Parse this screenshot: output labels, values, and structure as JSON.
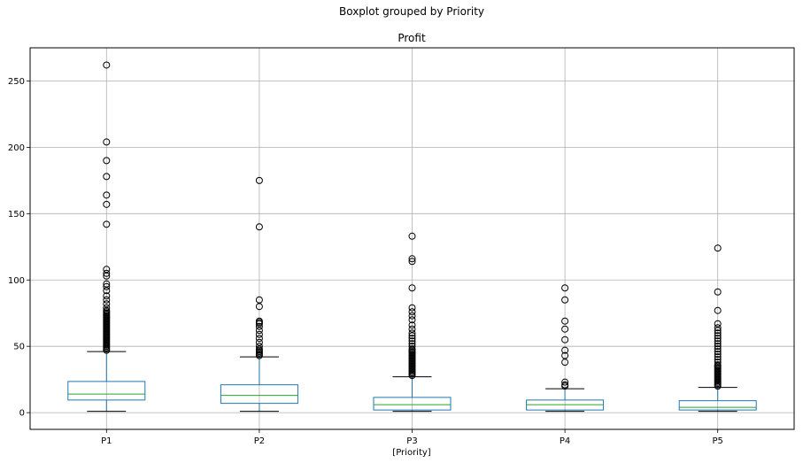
{
  "chart_data": {
    "type": "box",
    "suptitle": "Boxplot grouped by Priority",
    "title": "Profit",
    "xlabel": "[Priority]",
    "ylabel": "",
    "ylim": [
      -12.6,
      275
    ],
    "yticks": [
      0,
      50,
      100,
      150,
      200,
      250
    ],
    "grid": true,
    "colors": {
      "box": "#1f77b4",
      "median": "#2ca02c",
      "whisker": "#1f77b4",
      "cap": "#000000",
      "flier": "#000000",
      "grid": "#b0b0b0"
    },
    "categories": [
      "P1",
      "P2",
      "P3",
      "P4",
      "P5"
    ],
    "boxes": [
      {
        "label": "P1",
        "whislo": 1,
        "q1": 9.5,
        "med": 14,
        "q3": 23.5,
        "whishi": 46,
        "fliers": [
          47,
          48,
          49,
          50,
          51,
          52,
          53,
          54,
          55,
          56,
          57,
          58,
          59,
          60,
          61,
          62,
          63,
          64,
          65,
          66,
          67,
          68,
          69,
          70,
          71,
          72,
          73,
          74,
          75,
          76,
          77,
          79,
          82,
          85,
          88,
          92,
          95,
          97,
          103,
          105,
          108,
          142,
          157,
          164,
          178,
          190,
          204,
          262
        ]
      },
      {
        "label": "P2",
        "whislo": 1,
        "q1": 7,
        "med": 13,
        "q3": 21,
        "whishi": 42,
        "fliers": [
          43,
          44,
          45,
          46,
          47,
          48,
          50,
          53,
          56,
          59,
          62,
          65,
          67,
          68,
          69,
          80,
          85,
          140,
          175
        ]
      },
      {
        "label": "P3",
        "whislo": 1,
        "q1": 2,
        "med": 6,
        "q3": 11.5,
        "whishi": 27,
        "fliers": [
          28,
          29,
          30,
          31,
          32,
          33,
          34,
          35,
          36,
          37,
          38,
          39,
          40,
          41,
          42,
          43,
          44,
          45,
          46,
          47,
          48,
          50,
          52,
          54,
          56,
          58,
          60,
          63,
          66,
          70,
          73,
          76,
          79,
          94,
          114,
          116,
          133
        ]
      },
      {
        "label": "P4",
        "whislo": 1,
        "q1": 2,
        "med": 6,
        "q3": 9.5,
        "whishi": 18,
        "fliers": [
          20,
          21,
          23,
          38,
          43,
          47,
          55,
          63,
          69,
          85,
          94
        ]
      },
      {
        "label": "P5",
        "whislo": 1,
        "q1": 2,
        "med": 4,
        "q3": 9,
        "whishi": 19,
        "fliers": [
          20,
          21,
          22,
          23,
          24,
          25,
          26,
          27,
          28,
          29,
          30,
          31,
          32,
          33,
          34,
          35,
          36,
          38,
          40,
          42,
          44,
          46,
          48,
          50,
          52,
          54,
          56,
          58,
          60,
          62,
          64,
          67,
          77,
          91,
          124
        ]
      }
    ]
  }
}
